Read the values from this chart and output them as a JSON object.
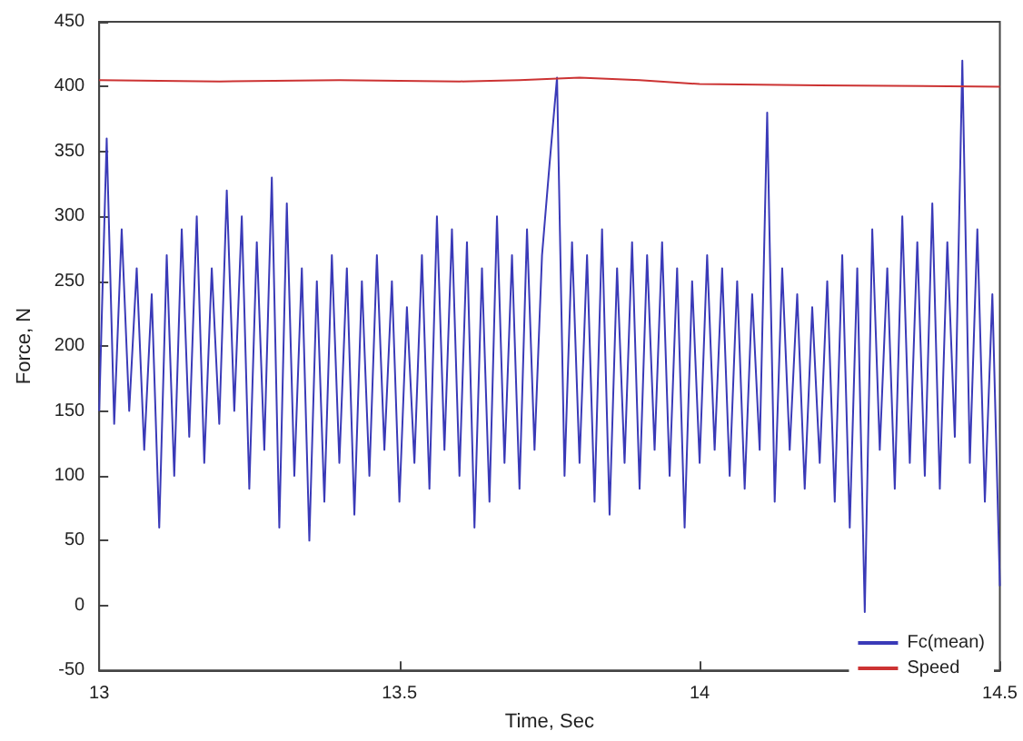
{
  "chart_data": {
    "type": "line",
    "xlabel": "Time, Sec",
    "ylabel": "Force, N",
    "xlim": [
      13,
      14.5
    ],
    "xticks": [
      13,
      13.5,
      14,
      14.5
    ],
    "ylim": [
      -50,
      450
    ],
    "yticks": [
      -50,
      0,
      50,
      100,
      150,
      200,
      250,
      300,
      350,
      400,
      450
    ],
    "grid": false,
    "legend": "bottom right",
    "marker": "none",
    "line_style": "solid",
    "series": [
      {
        "name": "Fc(mean)",
        "color": "#3a3ab8",
        "x": [
          13,
          13.0125,
          13.025,
          13.0375,
          13.05,
          13.0625,
          13.075,
          13.0875,
          13.1,
          13.1125,
          13.125,
          13.1375,
          13.15,
          13.1625,
          13.175,
          13.1875,
          13.2,
          13.2125,
          13.225,
          13.2375,
          13.25,
          13.2625,
          13.275,
          13.2875,
          13.3,
          13.3125,
          13.325,
          13.3375,
          13.35,
          13.3625,
          13.375,
          13.3875,
          13.4,
          13.4125,
          13.425,
          13.4375,
          13.45,
          13.4625,
          13.475,
          13.4875,
          13.5,
          13.5125,
          13.525,
          13.5375,
          13.55,
          13.5625,
          13.575,
          13.5875,
          13.6,
          13.6125,
          13.625,
          13.6375,
          13.65,
          13.6625,
          13.675,
          13.6875,
          13.7,
          13.7125,
          13.725,
          13.7375,
          13.75,
          13.7625,
          13.775,
          13.7875,
          13.8,
          13.8125,
          13.825,
          13.8375,
          13.85,
          13.8625,
          13.875,
          13.8875,
          13.9,
          13.9125,
          13.925,
          13.9375,
          13.95,
          13.9625,
          13.975,
          13.9875,
          14,
          14.0125,
          14.025,
          14.0375,
          14.05,
          14.0625,
          14.075,
          14.0875,
          14.1,
          14.1125,
          14.125,
          14.1375,
          14.15,
          14.1625,
          14.175,
          14.1875,
          14.2,
          14.2125,
          14.225,
          14.2375,
          14.25,
          14.2625,
          14.275,
          14.2875,
          14.3,
          14.3125,
          14.325,
          14.3375,
          14.35,
          14.3625,
          14.375,
          14.3875,
          14.4,
          14.4125,
          14.425,
          14.4375,
          14.45,
          14.4625,
          14.475,
          14.4875,
          14.5
        ],
        "values": [
          150,
          360,
          140,
          290,
          150,
          260,
          120,
          240,
          60,
          270,
          100,
          290,
          130,
          300,
          110,
          260,
          140,
          320,
          150,
          300,
          90,
          280,
          120,
          330,
          60,
          310,
          100,
          260,
          50,
          250,
          80,
          270,
          110,
          260,
          70,
          250,
          100,
          270,
          120,
          250,
          80,
          230,
          110,
          270,
          90,
          300,
          120,
          290,
          100,
          280,
          60,
          260,
          80,
          300,
          110,
          270,
          90,
          290,
          120,
          270,
          340,
          407,
          100,
          280,
          110,
          270,
          80,
          290,
          70,
          260,
          110,
          280,
          90,
          270,
          120,
          280,
          100,
          260,
          60,
          250,
          110,
          270,
          120,
          260,
          100,
          250,
          90,
          240,
          120,
          380,
          80,
          260,
          120,
          240,
          90,
          230,
          110,
          250,
          80,
          270,
          60,
          260,
          -5,
          290,
          120,
          260,
          90,
          300,
          110,
          280,
          100,
          310,
          90,
          280,
          130,
          420,
          110,
          290,
          80,
          240,
          15
        ]
      },
      {
        "name": "Speed",
        "color": "#cc3333",
        "x": [
          13,
          13.2,
          13.4,
          13.6,
          13.7,
          13.8,
          13.9,
          14,
          14.2,
          14.5
        ],
        "values": [
          405,
          404,
          405,
          404,
          405,
          407,
          405,
          402,
          401,
          400
        ]
      }
    ]
  }
}
